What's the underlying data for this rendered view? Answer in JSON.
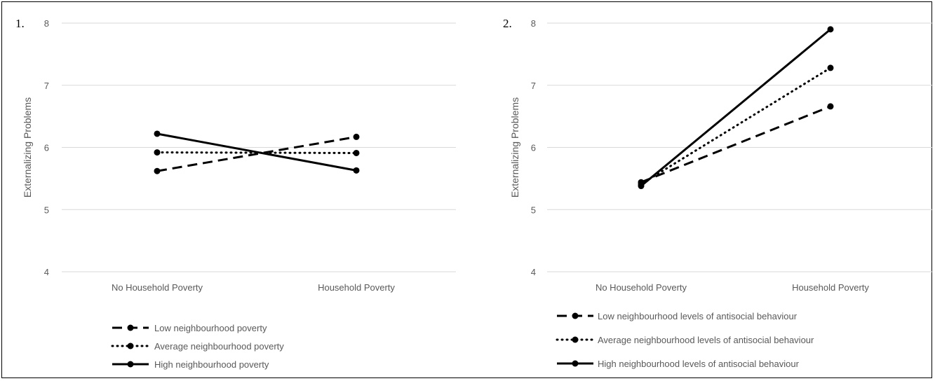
{
  "chart_data": [
    {
      "type": "line",
      "panel_label": "1.",
      "categories": [
        "No Household Poverty",
        "Household Poverty"
      ],
      "ylabel": "Externalizing Problems",
      "ylim": [
        4,
        8
      ],
      "yticks": [
        "4",
        "5",
        "6",
        "7",
        "8"
      ],
      "grid": true,
      "legend_position": "bottom",
      "series": [
        {
          "name": "Low neighbourhood poverty",
          "style": "dashed",
          "values": [
            5.62,
            6.17
          ]
        },
        {
          "name": "Average neighbourhood poverty",
          "style": "dotted",
          "values": [
            5.92,
            5.91
          ]
        },
        {
          "name": "High neighbourhood poverty",
          "style": "solid",
          "values": [
            6.22,
            5.63
          ]
        }
      ]
    },
    {
      "type": "line",
      "panel_label": "2.",
      "categories": [
        "No Household Poverty",
        "Household Poverty"
      ],
      "ylabel": "Externalizing Problems",
      "ylim": [
        4,
        8
      ],
      "yticks": [
        "4",
        "5",
        "6",
        "7",
        "8"
      ],
      "grid": true,
      "legend_position": "bottom",
      "series": [
        {
          "name": "Low neighbourhood levels of antisocial behaviour",
          "style": "dashed",
          "values": [
            5.44,
            6.66
          ]
        },
        {
          "name": "Average neighbourhood levels of antisocial behaviour",
          "style": "dotted",
          "values": [
            5.41,
            7.28
          ]
        },
        {
          "name": "High neighbourhood levels of antisocial behaviour",
          "style": "solid",
          "values": [
            5.38,
            7.9
          ]
        }
      ]
    }
  ],
  "colors": {
    "line": "#000000",
    "grid": "#d9d9d9",
    "text": "#595959"
  }
}
